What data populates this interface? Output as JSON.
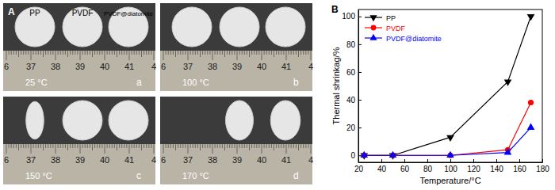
{
  "chart_data": {
    "type": "line",
    "annotations": [
      "B"
    ],
    "x_label": "Temperature/°C",
    "y_label": "Thermal shrinkag/%",
    "x": [
      25,
      50,
      100,
      150,
      170
    ],
    "series": [
      {
        "name": "PP",
        "color": "#000000",
        "marker": "triangle-down",
        "values": [
          0,
          0,
          13,
          53,
          100
        ]
      },
      {
        "name": "PVDF",
        "color": "#ff0000",
        "marker": "circle",
        "values": [
          0,
          0,
          0,
          4,
          38
        ]
      },
      {
        "name": "PVDF@diatomite",
        "color": "#0000ff",
        "marker": "triangle-up",
        "values": [
          0,
          0,
          0,
          2,
          20
        ]
      }
    ],
    "xlim": [
      20,
      180
    ],
    "xticks": [
      20,
      40,
      60,
      80,
      100,
      120,
      140,
      160,
      180
    ],
    "ylim": [
      -5,
      105
    ],
    "yticks": [
      0,
      20,
      40,
      60,
      80,
      100
    ],
    "grid": false,
    "legend": "upper left"
  },
  "photos": {
    "label": "A",
    "samples": [
      "PP",
      "PVDF",
      "PVDF@diatomite"
    ],
    "ruler_numbers": [
      "6",
      "37",
      "38",
      "39",
      "40",
      "41",
      "4"
    ],
    "panels": [
      {
        "letter": "a",
        "temperature": "25 °C"
      },
      {
        "letter": "b",
        "temperature": "100 °C"
      },
      {
        "letter": "c",
        "temperature": "150 °C"
      },
      {
        "letter": "d",
        "temperature": "170 °C"
      }
    ]
  }
}
